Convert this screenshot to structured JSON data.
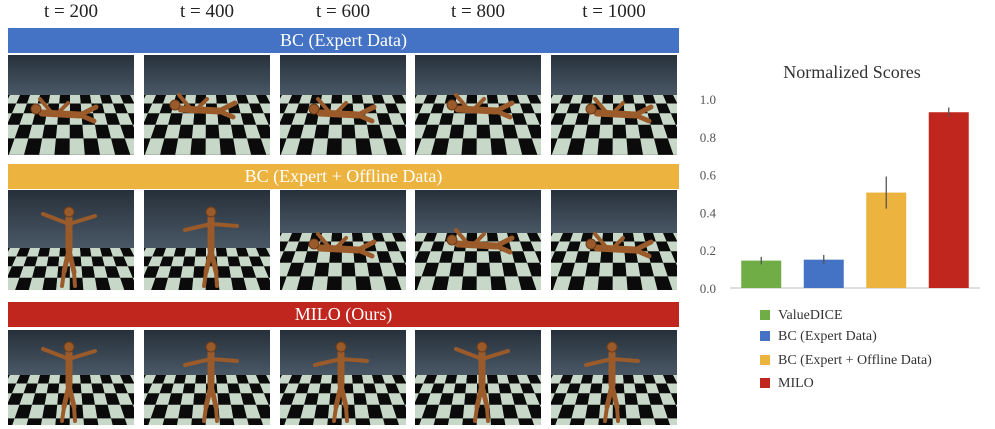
{
  "columns": [
    "t = 200",
    "t = 400",
    "t = 600",
    "t = 800",
    "t = 1000"
  ],
  "rows": [
    {
      "label": "BC (Expert Data)",
      "color": "#4472c4",
      "pose": "fallen"
    },
    {
      "label": "BC (Expert + Offline Data)",
      "color": "#ecb33f",
      "pose": "mixed"
    },
    {
      "label": "MILO (Ours)",
      "color": "#c0261e",
      "pose": "standing"
    }
  ],
  "chart_data": {
    "type": "bar",
    "title": "Normalized Scores",
    "categories": [
      "ValueDICE",
      "BC (Expert Data)",
      "BC (Expert + Offline Data)",
      "MILO"
    ],
    "values": [
      0.145,
      0.15,
      0.505,
      0.93
    ],
    "errors": [
      0.02,
      0.025,
      0.085,
      0.025
    ],
    "colors": [
      "#70ad47",
      "#4472c4",
      "#ecb33f",
      "#c0261e"
    ],
    "ylim": [
      0,
      1.0
    ],
    "yticks": [
      "0.0",
      "0.2",
      "0.4",
      "0.6",
      "0.8",
      "1.0"
    ],
    "grid": false,
    "legend_position": "bottom"
  }
}
